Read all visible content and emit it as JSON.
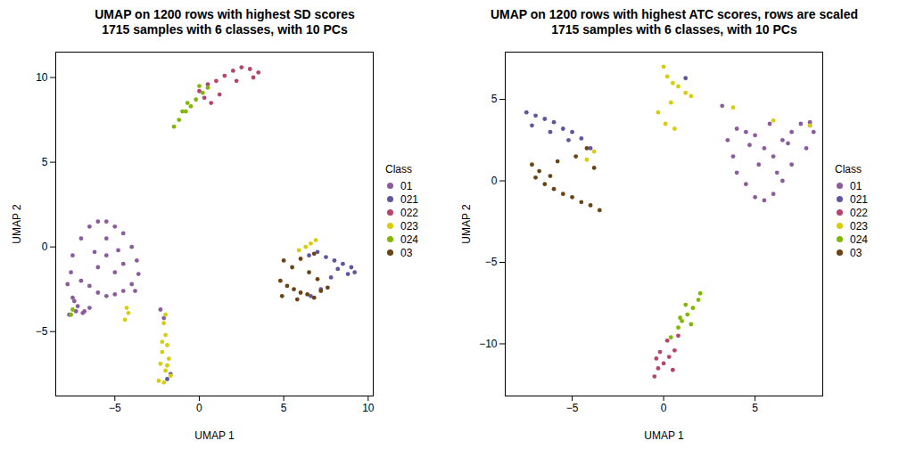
{
  "chart_data": [
    {
      "type": "scatter",
      "title": "UMAP on 1200 rows with highest SD scores",
      "subtitle": "1715 samples with 6 classes, with 10 PCs",
      "x_label": "UMAP 1",
      "y_label": "UMAP 2",
      "legend_title": "Class",
      "xlim": [
        -8.5,
        10.3
      ],
      "ylim": [
        -8.8,
        11.5
      ],
      "xticks": [
        -5,
        0,
        5,
        10
      ],
      "yticks": [
        -5,
        0,
        5,
        10
      ],
      "series": [
        {
          "name": "01",
          "color": "#8C5B9E",
          "x": [
            -7.5,
            -7,
            -6.5,
            -6,
            -5.5,
            -5,
            -4.5,
            -4,
            -3.7,
            -3.6,
            -4,
            -4.5,
            -5,
            -5.5,
            -6,
            -6.5,
            -7,
            -7.6,
            -7.8,
            -7.5,
            -7.2,
            -6.8,
            -6.5,
            -6,
            -5.5,
            -5,
            -4.5,
            -5.5,
            -6.2,
            -4.8,
            -3.8,
            -7.3,
            -7.7,
            -7.4,
            -6.9,
            -2.3,
            -2.1
          ],
          "y": [
            -0.5,
            0.5,
            1.2,
            1.5,
            1.5,
            1.2,
            0.8,
            0,
            -0.8,
            -1.6,
            -2.2,
            -2.6,
            -2.8,
            -2.9,
            -2.7,
            -2.3,
            -2.0,
            -1.5,
            -2.2,
            -3.0,
            -3.5,
            -3.8,
            -3.6,
            -1.2,
            -0.5,
            -1.5,
            -1.0,
            0.5,
            -0.3,
            -0.2,
            -2.6,
            -3.8,
            -4.0,
            -3.2,
            -3.9,
            -3.7,
            -4.2
          ]
        },
        {
          "name": "021",
          "color": "#5F56A0",
          "x": [
            6.5,
            7,
            7.5,
            8,
            8.5,
            9,
            9.2,
            8.8,
            8.2,
            7.8,
            7.2,
            6.6,
            -1.7,
            -1.9
          ],
          "y": [
            -0.5,
            -0.3,
            -0.6,
            -0.8,
            -1.0,
            -1.2,
            -1.5,
            -1.6,
            -1.3,
            -1.8,
            -2.5,
            -2.9,
            -7.5,
            -7.8
          ]
        },
        {
          "name": "022",
          "color": "#B5446E",
          "x": [
            0,
            0.5,
            1,
            1.5,
            2,
            2.5,
            3,
            3.5,
            3.2,
            2.2,
            1.2,
            0.7,
            0.3
          ],
          "y": [
            9.2,
            9.6,
            9.8,
            10.1,
            10.4,
            10.6,
            10.5,
            10.3,
            10.0,
            9.8,
            9.0,
            8.5,
            8.8
          ]
        },
        {
          "name": "023",
          "color": "#D8CC0E",
          "x": [
            -2.1,
            -2,
            -1.9,
            -2.2,
            -1.8,
            -2.3,
            -2.0,
            -1.7,
            -2.4,
            -2.1,
            -1.9,
            -2.2,
            -4.3,
            -4.2,
            -4.4,
            6.6,
            6.9,
            5.9,
            6.3,
            -2.0
          ],
          "y": [
            -4.5,
            -5.2,
            -5.8,
            -6.2,
            -6.6,
            -6.9,
            -7.3,
            -7.6,
            -7.9,
            -8.0,
            -7.0,
            -5.6,
            -3.6,
            -3.9,
            -4.3,
            0.2,
            0.4,
            -0.2,
            0.0,
            -4.0
          ]
        },
        {
          "name": "024",
          "color": "#7FB800",
          "x": [
            -1.5,
            -1.2,
            -0.8,
            -0.5,
            -0.2,
            0.2,
            0.5,
            0.0,
            -0.7,
            -1.0,
            -7.6,
            -7.5
          ],
          "y": [
            7.1,
            7.5,
            8.0,
            8.3,
            8.7,
            9.1,
            9.4,
            9.5,
            8.5,
            8.0,
            -4.0,
            -3.7
          ]
        },
        {
          "name": "03",
          "color": "#6B4314",
          "x": [
            4.8,
            5.2,
            5.6,
            6,
            6.4,
            6.8,
            7.2,
            7.6,
            5.5,
            6.0,
            6.8,
            5.0,
            4.9,
            5.8,
            7.0,
            6.5
          ],
          "y": [
            -2.0,
            -2.3,
            -2.5,
            -2.7,
            -2.8,
            -3.0,
            -2.6,
            -2.4,
            -1.2,
            -0.7,
            -0.4,
            -0.8,
            -2.9,
            -3.1,
            -1.9,
            -1.5
          ]
        }
      ]
    },
    {
      "type": "scatter",
      "title": "UMAP on 1200 rows with highest ATC scores, rows are scaled",
      "subtitle": "1715 samples with 6 classes, with 10 PCs",
      "x_label": "UMAP 1",
      "y_label": "UMAP 2",
      "legend_title": "Class",
      "xlim": [
        -8.66,
        8.7
      ],
      "ylim": [
        -13.2,
        7.9
      ],
      "xticks": [
        -5,
        0,
        5
      ],
      "yticks": [
        -10,
        -5,
        0,
        5
      ],
      "series": [
        {
          "name": "01",
          "color": "#8C5B9E",
          "x": [
            3.5,
            4,
            4.5,
            5,
            5.5,
            6,
            6.5,
            7,
            7.5,
            8,
            8.2,
            7.8,
            7,
            6.5,
            6,
            5.5,
            5,
            4.5,
            4,
            3.8,
            5.2,
            6.2,
            4.7,
            5.8,
            6.8,
            3.2,
            8.0
          ],
          "y": [
            2.5,
            3.2,
            3.0,
            2.8,
            2.0,
            1.5,
            2.5,
            3.0,
            3.5,
            3.4,
            3.0,
            2.0,
            1.0,
            0.0,
            -0.8,
            -1.2,
            -1.0,
            -0.2,
            0.5,
            1.5,
            1.0,
            0.5,
            2.2,
            3.5,
            2.3,
            4.6,
            3.6
          ]
        },
        {
          "name": "021",
          "color": "#5F56A0",
          "x": [
            -7.5,
            -7,
            -6.5,
            -6,
            -5.5,
            -5,
            -4.5,
            -4,
            -7.2,
            -6.2,
            -5.2,
            1.2
          ],
          "y": [
            4.2,
            4.0,
            3.8,
            3.6,
            3.2,
            3.0,
            2.6,
            2.0,
            3.4,
            3.0,
            2.5,
            6.3
          ]
        },
        {
          "name": "022",
          "color": "#B5446E",
          "x": [
            -0.5,
            -0.3,
            0,
            0.3,
            0.6,
            -0.2,
            0.2,
            0.8,
            0.5,
            -0.4
          ],
          "y": [
            -12.0,
            -11.5,
            -11.2,
            -10.8,
            -10.4,
            -10.5,
            -9.8,
            -9.5,
            -11.6,
            -10.9
          ]
        },
        {
          "name": "023",
          "color": "#D8CC0E",
          "x": [
            0,
            0.2,
            0.5,
            0.8,
            1.2,
            1.5,
            0.4,
            0.1,
            0.6,
            -0.3,
            -3.8,
            -4.2,
            3.8,
            8.0,
            6.0
          ],
          "y": [
            7.0,
            6.4,
            6.0,
            5.8,
            5.4,
            5.2,
            4.8,
            3.5,
            3.2,
            4.2,
            1.8,
            1.3,
            4.5,
            3.4,
            3.7
          ]
        },
        {
          "name": "024",
          "color": "#7FB800",
          "x": [
            0.8,
            1.0,
            1.3,
            1.6,
            1.9,
            2.0,
            1.2,
            0.9,
            1.5,
            0.4
          ],
          "y": [
            -9.0,
            -8.6,
            -8.2,
            -7.8,
            -7.3,
            -6.9,
            -7.6,
            -8.4,
            -8.8,
            -9.6
          ]
        },
        {
          "name": "03",
          "color": "#6B4314",
          "x": [
            -7.2,
            -7,
            -6.5,
            -6,
            -5.5,
            -5,
            -4.5,
            -4,
            -3.5,
            -6.8,
            -6.2,
            -5.8,
            -4.8,
            -4.2,
            -3.8
          ],
          "y": [
            1.0,
            0.2,
            -0.2,
            -0.5,
            -0.8,
            -1.0,
            -1.3,
            -1.5,
            -1.8,
            0.6,
            0.3,
            1.2,
            1.5,
            2.0,
            0.8
          ]
        }
      ]
    }
  ]
}
